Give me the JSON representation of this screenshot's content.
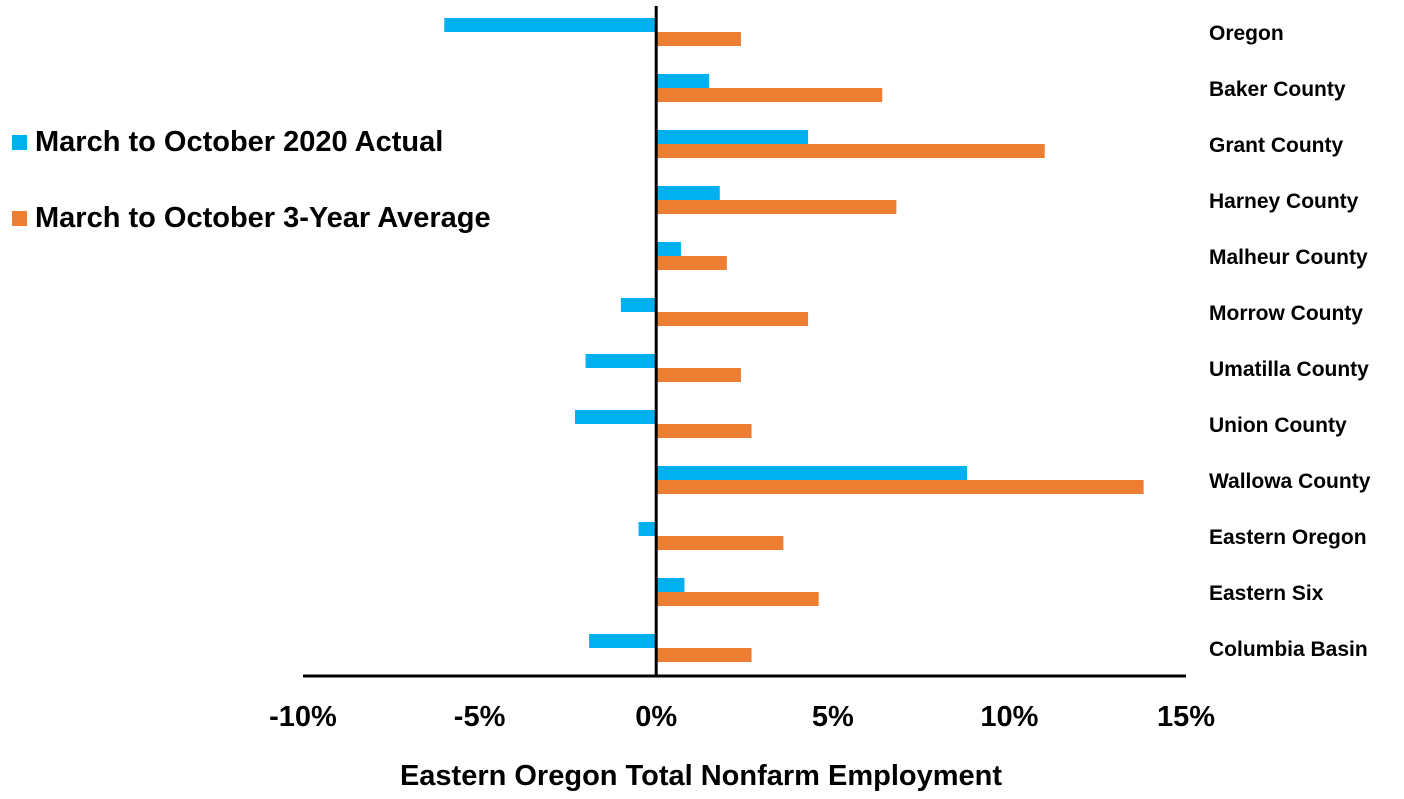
{
  "chart_data": {
    "type": "bar",
    "orientation": "horizontal",
    "categories": [
      "Oregon",
      "Baker County",
      "Grant County",
      "Harney County",
      "Malheur County",
      "Morrow County",
      "Umatilla County",
      "Union County",
      "Wallowa County",
      "Eastern Oregon",
      "Eastern Six",
      "Columbia Basin"
    ],
    "series": [
      {
        "name": "March to October 2020 Actual",
        "color": "#00b0f0",
        "values": [
          -6.0,
          1.5,
          4.3,
          1.8,
          0.7,
          -1.0,
          -2.0,
          -2.3,
          8.8,
          -0.5,
          0.8,
          -1.9
        ]
      },
      {
        "name": "March to October 3-Year Average",
        "color": "#ed7d31",
        "values": [
          2.4,
          6.4,
          11.0,
          6.8,
          2.0,
          4.3,
          2.4,
          2.7,
          13.8,
          3.6,
          4.6,
          2.7
        ]
      }
    ],
    "title": "",
    "xlabel": "Eastern Oregon Total Nonfarm Employment",
    "ylabel": "",
    "xlim": [
      -10,
      15
    ],
    "x_ticks": [
      "-10%",
      "-5%",
      "0%",
      "5%",
      "10%",
      "15%"
    ],
    "grid": false,
    "legend_position": "left"
  }
}
